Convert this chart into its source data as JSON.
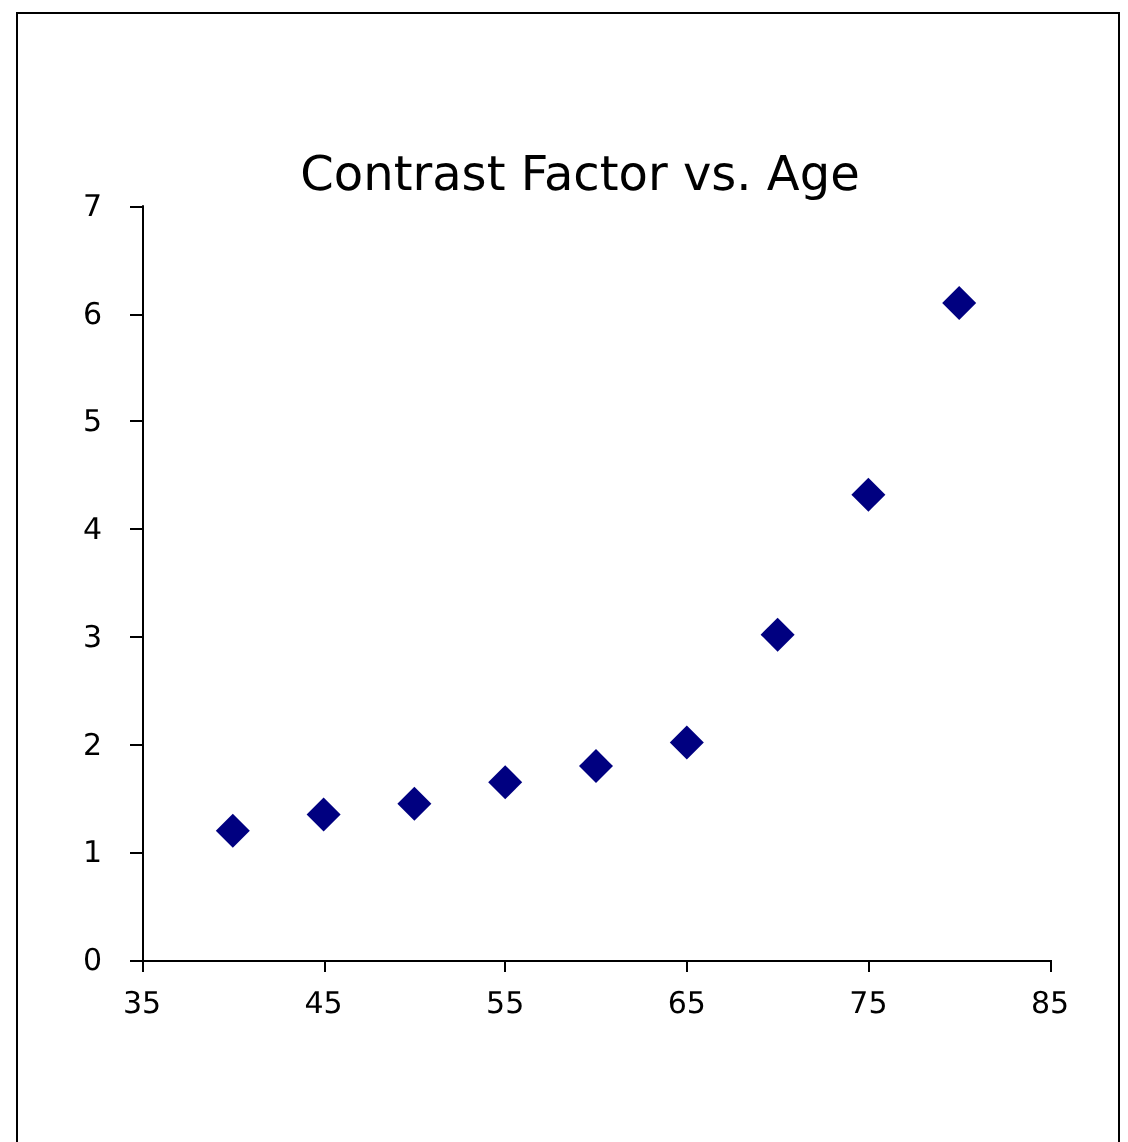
{
  "chart_data": {
    "type": "scatter",
    "title": "Contrast Factor vs. Age",
    "x": [
      40,
      45,
      50,
      55,
      60,
      65,
      70,
      75,
      80
    ],
    "series": [
      {
        "color": "#000080",
        "values": [
          1.2,
          1.35,
          1.45,
          1.65,
          1.8,
          2.02,
          3.02,
          4.32,
          6.1
        ]
      }
    ],
    "xlim": [
      35,
      85
    ],
    "xticks": [
      35,
      45,
      55,
      65,
      75,
      85
    ],
    "ylim": [
      0,
      7
    ],
    "yticks": [
      0,
      1,
      2,
      3,
      4,
      5,
      6,
      7
    ],
    "marker": "diamond"
  }
}
